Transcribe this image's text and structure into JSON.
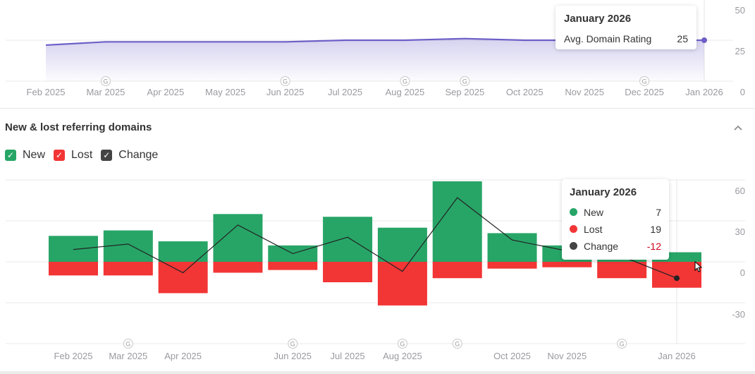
{
  "chart_data": [
    {
      "type": "area",
      "title": "Avg. Domain Rating",
      "categories": [
        "Feb 2025",
        "Mar 2025",
        "Apr 2025",
        "May 2025",
        "Jun 2025",
        "Jul 2025",
        "Aug 2025",
        "Sep 2025",
        "Oct 2025",
        "Nov 2025",
        "Dec 2025",
        "Jan 2026"
      ],
      "values": [
        22,
        24,
        24,
        24,
        24,
        25,
        25,
        26,
        25,
        25,
        25,
        25
      ],
      "ylim": [
        0,
        50
      ],
      "yticks": [
        "50",
        "25",
        "0"
      ],
      "g_markers": [
        "Mar 2025",
        "Jun 2025",
        "Aug 2025",
        "Sep 2025",
        "Dec 2025"
      ],
      "color": "#6c5fc7",
      "tooltip": {
        "title": "January 2026",
        "label": "Avg. Domain Rating",
        "value": "25"
      }
    },
    {
      "type": "bar",
      "title": "New & lost referring domains",
      "categories": [
        "Feb 2025",
        "Mar 2025",
        "Apr 2025",
        "May 2025",
        "Jun 2025",
        "Jul 2025",
        "Aug 2025",
        "Sep 2025",
        "Oct 2025",
        "Nov 2025",
        "Dec 2025",
        "Jan 2026"
      ],
      "shown_labels": [
        "Feb 2025",
        "Mar 2025",
        "Apr 2025",
        "",
        "Jun 2025",
        "Jul 2025",
        "Aug 2025",
        "",
        "Oct 2025",
        "Nov 2025",
        "",
        "Jan 2026"
      ],
      "series": [
        {
          "name": "New",
          "color": "#27a567",
          "values": [
            19,
            23,
            15,
            35,
            12,
            33,
            25,
            59,
            21,
            12,
            16,
            7
          ]
        },
        {
          "name": "Lost",
          "color": "#f23535",
          "values": [
            10,
            10,
            23,
            8,
            6,
            15,
            32,
            12,
            5,
            4,
            12,
            19
          ]
        },
        {
          "name": "Change",
          "color": "#333333",
          "values": [
            9,
            13,
            -8,
            27,
            6,
            18,
            -7,
            47,
            16,
            8,
            4,
            -12
          ]
        }
      ],
      "ylim": [
        -60,
        60
      ],
      "yticks": [
        "60",
        "30",
        "0",
        "-30"
      ],
      "g_markers": [
        "Mar 2025",
        "Jun 2025",
        "Aug 2025",
        "Sep 2025",
        "Dec 2025"
      ],
      "tooltip": {
        "title": "January 2026",
        "rows": [
          {
            "label": "New",
            "value": "7",
            "color": "#27a567"
          },
          {
            "label": "Lost",
            "value": "19",
            "color": "#f23535"
          },
          {
            "label": "Change",
            "value": "-12",
            "color": "#444444",
            "value_color": "#d0021b"
          }
        ]
      }
    }
  ],
  "section": {
    "title": "New & lost referring domains",
    "legend": [
      {
        "label": "New",
        "color": "#27a567"
      },
      {
        "label": "Lost",
        "color": "#f23535"
      },
      {
        "label": "Change",
        "color": "#444444"
      }
    ]
  },
  "icons": {
    "g": "G",
    "check": "✓",
    "chevron": "⌃"
  }
}
